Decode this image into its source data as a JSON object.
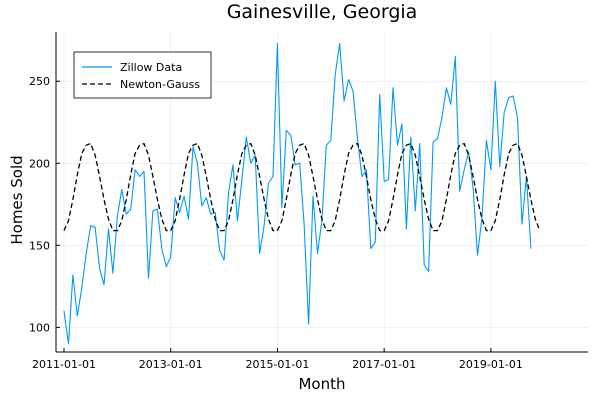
{
  "chart_data": {
    "type": "line",
    "title": "Gainesville, Georgia",
    "xlabel": "Month",
    "ylabel": "Homes Sold",
    "xlim": [
      2010.85,
      2020.82
    ],
    "ylim": [
      85,
      280
    ],
    "grid": true,
    "legend_position": "top-left",
    "x_ticks": [
      {
        "value": 2011,
        "label": "2011-01-01"
      },
      {
        "value": 2013,
        "label": "2013-01-01"
      },
      {
        "value": 2015,
        "label": "2015-01-01"
      },
      {
        "value": 2017,
        "label": "2017-01-01"
      },
      {
        "value": 2019,
        "label": "2019-01-01"
      }
    ],
    "y_ticks": [
      {
        "value": 100,
        "label": "100"
      },
      {
        "value": 150,
        "label": "150"
      },
      {
        "value": 200,
        "label": "200"
      },
      {
        "value": 250,
        "label": "250"
      }
    ],
    "series": [
      {
        "name": "Zillow Data",
        "style": "solid",
        "color": "#009AFA",
        "x_start": 2011,
        "x_step": 0.08333,
        "values": [
          110,
          90,
          132,
          107,
          124,
          145,
          162,
          161,
          136,
          126,
          160,
          133,
          168,
          184,
          169,
          172,
          196,
          192,
          195,
          130,
          171,
          172,
          148,
          137,
          143,
          179,
          170,
          180,
          166,
          210,
          200,
          174,
          179,
          169,
          170,
          147,
          141,
          182,
          199,
          165,
          190,
          216,
          200,
          205,
          145,
          162,
          188,
          192,
          273,
          173,
          220,
          217,
          199,
          200,
          163,
          102,
          180,
          145,
          165,
          211,
          214,
          254,
          273,
          238,
          251,
          244,
          215,
          192,
          196,
          148,
          152,
          242,
          189,
          190,
          246,
          211,
          224,
          160,
          216,
          171,
          212,
          138,
          134,
          213,
          215,
          228,
          246,
          236,
          265,
          183,
          196,
          207,
          185,
          144,
          167,
          214,
          196,
          250,
          198,
          231,
          240,
          241,
          228,
          163,
          192,
          148
        ]
      },
      {
        "name": "Newton-Gauss",
        "style": "dashed",
        "color": "#000000",
        "x_start": 2011,
        "x_step": 0.08333,
        "values": [
          159,
          165,
          178,
          193,
          206,
          211,
          212,
          205,
          192,
          178,
          166,
          159,
          159,
          165,
          178,
          193,
          206,
          211,
          212,
          205,
          192,
          178,
          166,
          159,
          159,
          165,
          178,
          193,
          206,
          211,
          212,
          205,
          192,
          178,
          166,
          159,
          159,
          165,
          178,
          193,
          206,
          211,
          212,
          205,
          192,
          178,
          166,
          159,
          159,
          165,
          178,
          193,
          206,
          211,
          212,
          205,
          192,
          178,
          166,
          159,
          159,
          165,
          178,
          193,
          206,
          211,
          212,
          205,
          192,
          178,
          166,
          159,
          159,
          165,
          178,
          193,
          206,
          211,
          212,
          205,
          192,
          178,
          166,
          159,
          159,
          165,
          178,
          193,
          206,
          211,
          212,
          205,
          192,
          178,
          166,
          159,
          159,
          165,
          178,
          193,
          206,
          211,
          212,
          205,
          192,
          178,
          166,
          159
        ]
      }
    ]
  }
}
